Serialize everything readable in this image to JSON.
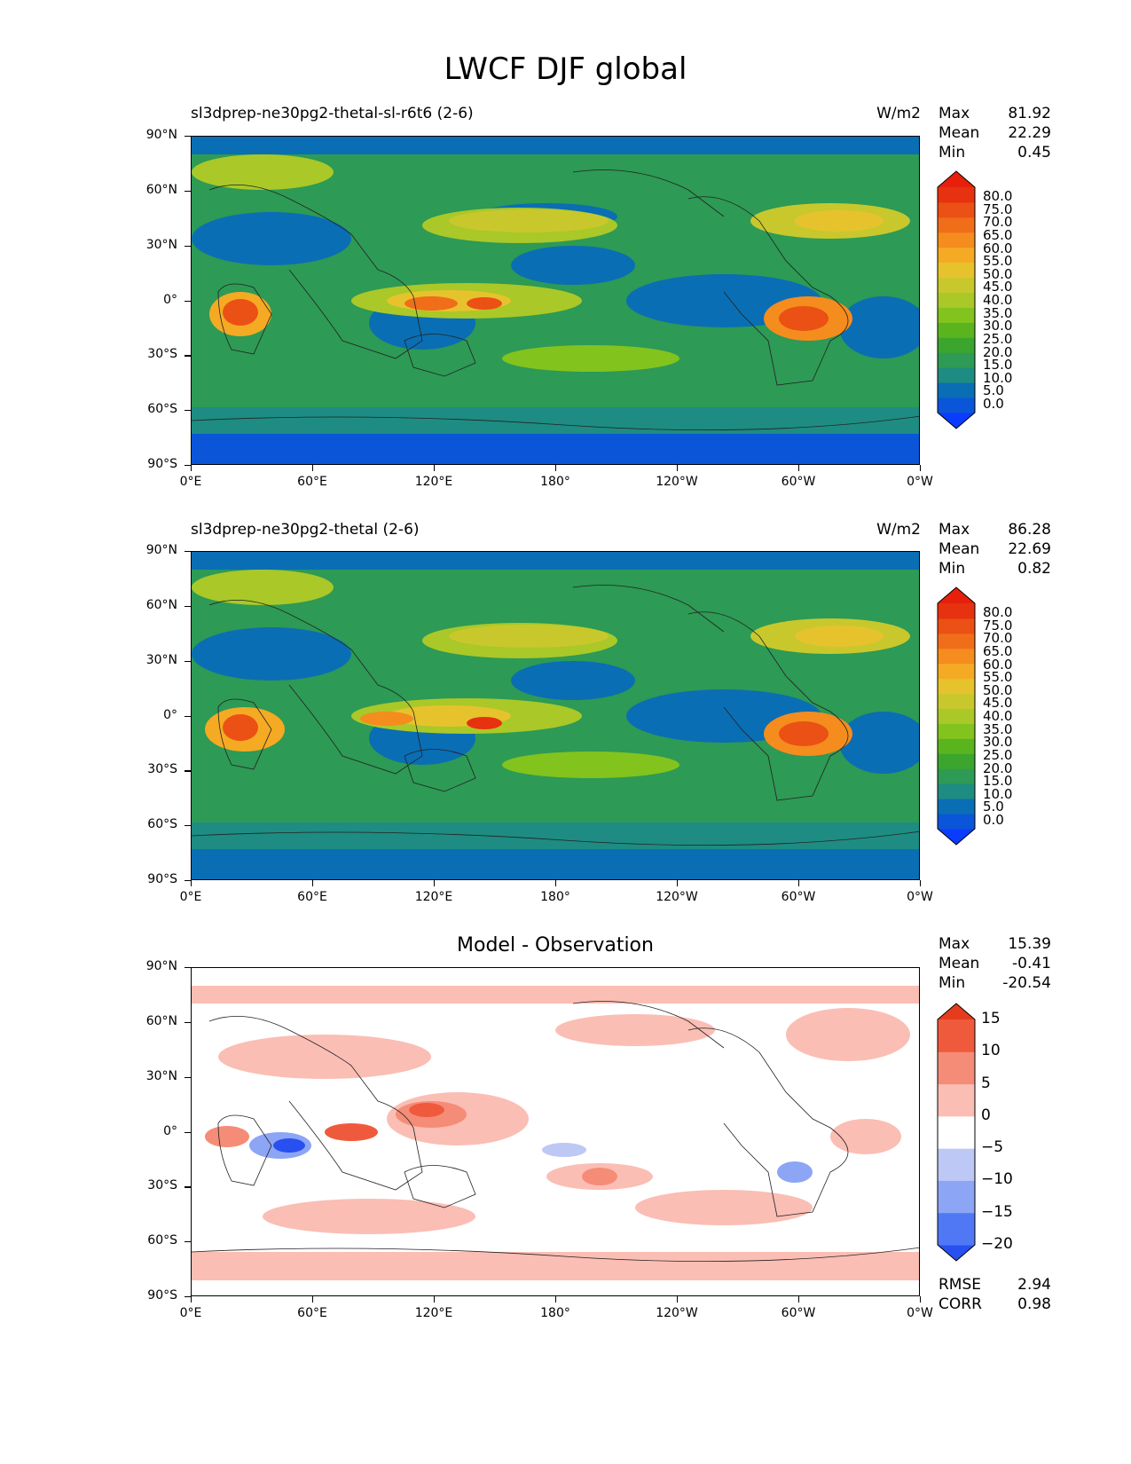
{
  "figure": {
    "title": "LWCF DJF global"
  },
  "axes": {
    "lat_ticks": [
      "90°N",
      "60°N",
      "30°N",
      "0°",
      "30°S",
      "60°S",
      "90°S"
    ],
    "lon_ticks": [
      "0°E",
      "60°E",
      "120°E",
      "180°",
      "120°W",
      "60°W",
      "0°W"
    ]
  },
  "panels": [
    {
      "title": "sl3dprep-ne30pg2-thetal-sl-r6t6 (2-6)",
      "units": "W/m2",
      "stats": [
        {
          "label": "Max",
          "value": "81.92"
        },
        {
          "label": "Mean",
          "value": "22.29"
        },
        {
          "label": "Min",
          "value": "0.45"
        }
      ],
      "colorbar": [
        "80.0",
        "75.0",
        "70.0",
        "65.0",
        "60.0",
        "55.0",
        "50.0",
        "45.0",
        "40.0",
        "35.0",
        "30.0",
        "25.0",
        "20.0",
        "15.0",
        "10.0",
        "5.0",
        "0.0"
      ]
    },
    {
      "title": "sl3dprep-ne30pg2-thetal (2-6)",
      "units": "W/m2",
      "stats": [
        {
          "label": "Max",
          "value": "86.28"
        },
        {
          "label": "Mean",
          "value": "22.69"
        },
        {
          "label": "Min",
          "value": "0.82"
        }
      ],
      "colorbar": [
        "80.0",
        "75.0",
        "70.0",
        "65.0",
        "60.0",
        "55.0",
        "50.0",
        "45.0",
        "40.0",
        "35.0",
        "30.0",
        "25.0",
        "20.0",
        "15.0",
        "10.0",
        "5.0",
        "0.0"
      ]
    },
    {
      "title": "Model - Observation",
      "stats": [
        {
          "label": "Max",
          "value": "15.39"
        },
        {
          "label": "Mean",
          "value": "-0.41"
        },
        {
          "label": "Min",
          "value": "-20.54"
        }
      ],
      "colorbar": [
        "15",
        "10",
        "5",
        "0",
        "−5",
        "−10",
        "−15",
        "−20"
      ],
      "metrics": [
        {
          "label": "RMSE",
          "value": "2.94"
        },
        {
          "label": "CORR",
          "value": "0.98"
        }
      ]
    }
  ],
  "colors": {
    "field_scale": [
      "#0a3cff",
      "#0a55d8",
      "#0a6eb4",
      "#1e8c82",
      "#2d9a55",
      "#3ca52d",
      "#5ab41e",
      "#82c31e",
      "#aac828",
      "#c8c82d",
      "#e6c32d",
      "#f5aa23",
      "#f58c1e",
      "#f06e19",
      "#eb5014",
      "#e63210",
      "#e6200a"
    ],
    "diff_scale": [
      "#2850f0",
      "#5078f5",
      "#8ca5f5",
      "#bec8f5",
      "#ffffff",
      "#fabeb4",
      "#f58c78",
      "#f05a3c",
      "#e63c1e"
    ]
  }
}
